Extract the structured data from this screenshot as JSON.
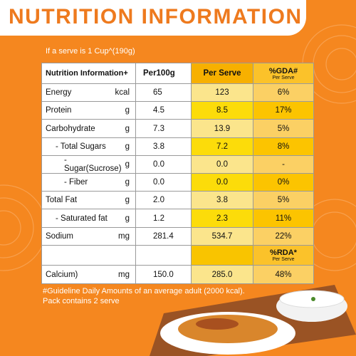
{
  "header": {
    "title": "NUTRITION INFORMATION"
  },
  "serving_note": "If a serve is 1 Cup^(190g)",
  "table": {
    "header": [
      "Nutrition Information+",
      "Per100g",
      "Per Serve",
      "%GDA#",
      "Per Serve"
    ],
    "rows": [
      [
        "Energy",
        "kcal",
        "65",
        "123",
        "6%"
      ],
      [
        "Protein",
        "g",
        "4.5",
        "8.5",
        "17%"
      ],
      [
        "Carbohydrate",
        "g",
        "7.3",
        "13.9",
        "5%"
      ],
      [
        "- Total Sugars",
        "g",
        "3.8",
        "7.2",
        "8%"
      ],
      [
        "- Sugar(Sucrose)",
        "g",
        "0.0",
        "0.0",
        "-"
      ],
      [
        "- Fiber",
        "g",
        "0.0",
        "0.0",
        "0%"
      ],
      [
        "Total Fat",
        "g",
        "2.0",
        "3.8",
        "5%"
      ],
      [
        "- Saturated fat",
        "g",
        "1.2",
        "2.3",
        "11%"
      ],
      [
        "Sodium",
        "mg",
        "281.4",
        "534.7",
        "22%"
      ]
    ],
    "rda_header": [
      "%RDA*",
      "Per Serve"
    ],
    "rda_rows": [
      [
        "Calcium)",
        "mg",
        "150.0",
        "285.0",
        "48%"
      ]
    ]
  },
  "footnotes": [
    "#Guideline Daily Amounts of an average adult (2000 kcal).",
    "Pack contains 2 serve"
  ]
}
